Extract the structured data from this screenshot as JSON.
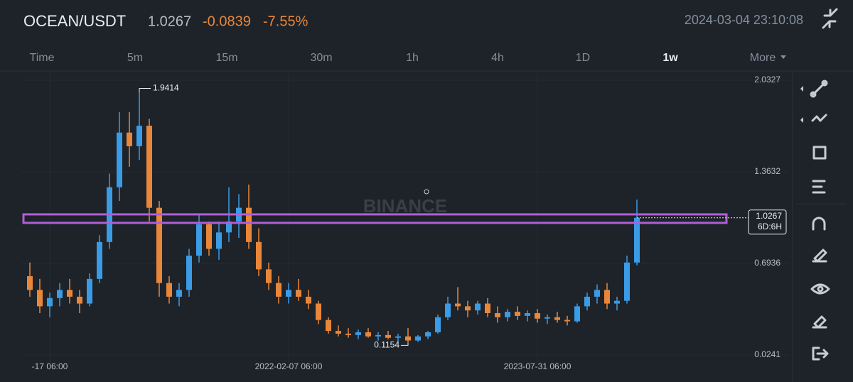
{
  "header": {
    "pair": "OCEAN/USDT",
    "last": "1.0267",
    "change": "-0.0839",
    "change_pct": "-7.55%",
    "time": "2024-03-04 23:10:08"
  },
  "tabs": [
    "Time",
    "5m",
    "15m",
    "30m",
    "1h",
    "4h",
    "1D",
    "1w",
    "More"
  ],
  "active_tab": "1w",
  "watermark": "BINANCE",
  "chart_data": {
    "type": "candlestick",
    "categories": [
      null,
      null,
      "-17 06:00",
      null,
      null,
      null,
      null,
      null,
      null,
      null,
      null,
      null,
      null,
      null,
      null,
      null,
      null,
      null,
      null,
      null,
      null,
      null,
      null,
      null,
      null,
      null,
      "2022-02-07 06:00",
      null,
      null,
      null,
      null,
      null,
      null,
      null,
      null,
      null,
      null,
      null,
      null,
      null,
      null,
      null,
      null,
      null,
      null,
      null,
      null,
      null,
      null,
      null,
      null,
      "2023-07-31 06:00",
      null,
      null,
      null,
      null,
      null,
      null,
      null,
      null,
      null,
      null
    ],
    "open": [
      0.6,
      0.5,
      0.38,
      0.44,
      0.5,
      0.45,
      0.4,
      0.58,
      0.85,
      1.25,
      1.65,
      1.55,
      1.7,
      1.1,
      0.55,
      0.45,
      0.5,
      0.75,
      0.98,
      0.8,
      0.92,
      1.0,
      1.1,
      0.85,
      0.65,
      0.55,
      0.45,
      0.5,
      0.45,
      0.4,
      0.28,
      0.2,
      0.18,
      0.17,
      0.19,
      0.16,
      0.17,
      0.15,
      0.16,
      0.13,
      0.16,
      0.19,
      0.3,
      0.4,
      0.38,
      0.35,
      0.4,
      0.33,
      0.3,
      0.34,
      0.31,
      0.33,
      0.29,
      0.3,
      0.28,
      0.27,
      0.38,
      0.45,
      0.5,
      0.4,
      0.42,
      0.7
    ],
    "high": [
      0.7,
      0.58,
      0.48,
      0.55,
      0.58,
      0.5,
      0.62,
      0.9,
      1.35,
      1.8,
      1.8,
      1.9414,
      1.75,
      1.15,
      0.6,
      0.55,
      0.8,
      1.05,
      1.0,
      1.0,
      1.25,
      1.2,
      1.27,
      0.95,
      0.7,
      0.6,
      0.55,
      0.58,
      0.5,
      0.42,
      0.3,
      0.24,
      0.22,
      0.21,
      0.22,
      0.19,
      0.2,
      0.18,
      0.22,
      0.17,
      0.2,
      0.32,
      0.45,
      0.52,
      0.42,
      0.42,
      0.44,
      0.38,
      0.36,
      0.38,
      0.35,
      0.36,
      0.32,
      0.34,
      0.31,
      0.4,
      0.48,
      0.54,
      0.55,
      0.45,
      0.75,
      1.16
    ],
    "low": [
      0.45,
      0.33,
      0.3,
      0.38,
      0.4,
      0.33,
      0.38,
      0.55,
      0.8,
      1.15,
      1.4,
      1.45,
      1.0,
      0.45,
      0.4,
      0.38,
      0.45,
      0.7,
      0.75,
      0.72,
      0.85,
      0.88,
      0.8,
      0.6,
      0.5,
      0.4,
      0.4,
      0.42,
      0.36,
      0.25,
      0.18,
      0.16,
      0.15,
      0.14,
      0.15,
      0.13,
      0.14,
      0.12,
      0.1154,
      0.12,
      0.14,
      0.18,
      0.28,
      0.35,
      0.3,
      0.32,
      0.3,
      0.26,
      0.27,
      0.28,
      0.27,
      0.26,
      0.25,
      0.26,
      0.24,
      0.26,
      0.35,
      0.4,
      0.36,
      0.35,
      0.4,
      0.68
    ],
    "close": [
      0.5,
      0.38,
      0.44,
      0.5,
      0.45,
      0.4,
      0.58,
      0.85,
      1.25,
      1.65,
      1.55,
      1.7,
      1.1,
      0.55,
      0.45,
      0.5,
      0.75,
      0.98,
      0.8,
      0.92,
      1.0,
      1.1,
      0.85,
      0.65,
      0.55,
      0.45,
      0.5,
      0.45,
      0.4,
      0.28,
      0.2,
      0.18,
      0.17,
      0.19,
      0.16,
      0.17,
      0.15,
      0.16,
      0.13,
      0.16,
      0.19,
      0.3,
      0.4,
      0.38,
      0.35,
      0.4,
      0.33,
      0.3,
      0.34,
      0.31,
      0.33,
      0.29,
      0.3,
      0.28,
      0.27,
      0.38,
      0.45,
      0.5,
      0.4,
      0.42,
      0.7,
      1.0267
    ],
    "up_color": "#3a9be6",
    "down_color": "#e8873a",
    "ylim": [
      -0.054,
      2.1
    ],
    "yticks": [
      0.0241,
      0.6936,
      1.3632,
      2.0327
    ],
    "high_mark": 11,
    "low_mark": 38,
    "current_price": 1.0267,
    "countdown": "6D:6H",
    "zone": {
      "low": 0.99,
      "high": 1.052,
      "color": "#b05ed8"
    }
  }
}
